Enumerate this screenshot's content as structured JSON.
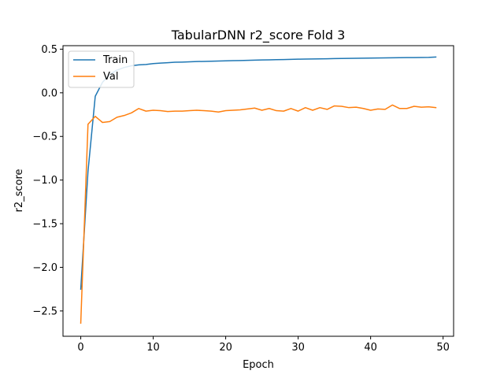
{
  "chart_data": {
    "type": "line",
    "title": "TabularDNN r2_score Fold 3",
    "xlabel": "Epoch",
    "ylabel": "r2_score",
    "xlim": [
      -2.45,
      51.45
    ],
    "ylim": [
      -2.79,
      0.54
    ],
    "xticks": [
      0,
      10,
      20,
      30,
      40,
      50
    ],
    "yticks": [
      0.5,
      0.0,
      -0.5,
      -1.0,
      -1.5,
      -2.0,
      -2.5
    ],
    "ytick_labels": [
      "0.5",
      "0.0",
      "−0.5",
      "−1.0",
      "−1.5",
      "−2.0",
      "−2.5"
    ],
    "grid": false,
    "legend": "top-left",
    "x": [
      0,
      1,
      2,
      3,
      4,
      5,
      6,
      7,
      8,
      9,
      10,
      11,
      12,
      13,
      14,
      15,
      16,
      17,
      18,
      19,
      20,
      21,
      22,
      23,
      24,
      25,
      26,
      27,
      28,
      29,
      30,
      31,
      32,
      33,
      34,
      35,
      36,
      37,
      38,
      39,
      40,
      41,
      42,
      43,
      44,
      45,
      46,
      47,
      48,
      49
    ],
    "series": [
      {
        "name": "Train",
        "color": "#1f77b4",
        "values": [
          -2.25,
          -0.9,
          -0.04,
          0.12,
          0.21,
          0.26,
          0.29,
          0.31,
          0.32,
          0.325,
          0.335,
          0.34,
          0.345,
          0.35,
          0.352,
          0.355,
          0.358,
          0.36,
          0.362,
          0.364,
          0.366,
          0.368,
          0.37,
          0.372,
          0.374,
          0.376,
          0.378,
          0.38,
          0.381,
          0.383,
          0.385,
          0.386,
          0.388,
          0.389,
          0.39,
          0.392,
          0.393,
          0.395,
          0.396,
          0.397,
          0.398,
          0.399,
          0.4,
          0.401,
          0.402,
          0.403,
          0.404,
          0.405,
          0.406,
          0.41
        ]
      },
      {
        "name": "Val",
        "color": "#ff7f0e",
        "values": [
          -2.64,
          -0.36,
          -0.27,
          -0.34,
          -0.33,
          -0.28,
          -0.26,
          -0.23,
          -0.18,
          -0.21,
          -0.2,
          -0.205,
          -0.215,
          -0.21,
          -0.21,
          -0.205,
          -0.2,
          -0.205,
          -0.21,
          -0.22,
          -0.205,
          -0.2,
          -0.195,
          -0.185,
          -0.175,
          -0.2,
          -0.18,
          -0.205,
          -0.21,
          -0.18,
          -0.21,
          -0.17,
          -0.2,
          -0.17,
          -0.19,
          -0.15,
          -0.155,
          -0.17,
          -0.165,
          -0.18,
          -0.2,
          -0.185,
          -0.19,
          -0.14,
          -0.18,
          -0.18,
          -0.155,
          -0.165,
          -0.16,
          -0.17
        ]
      }
    ]
  }
}
